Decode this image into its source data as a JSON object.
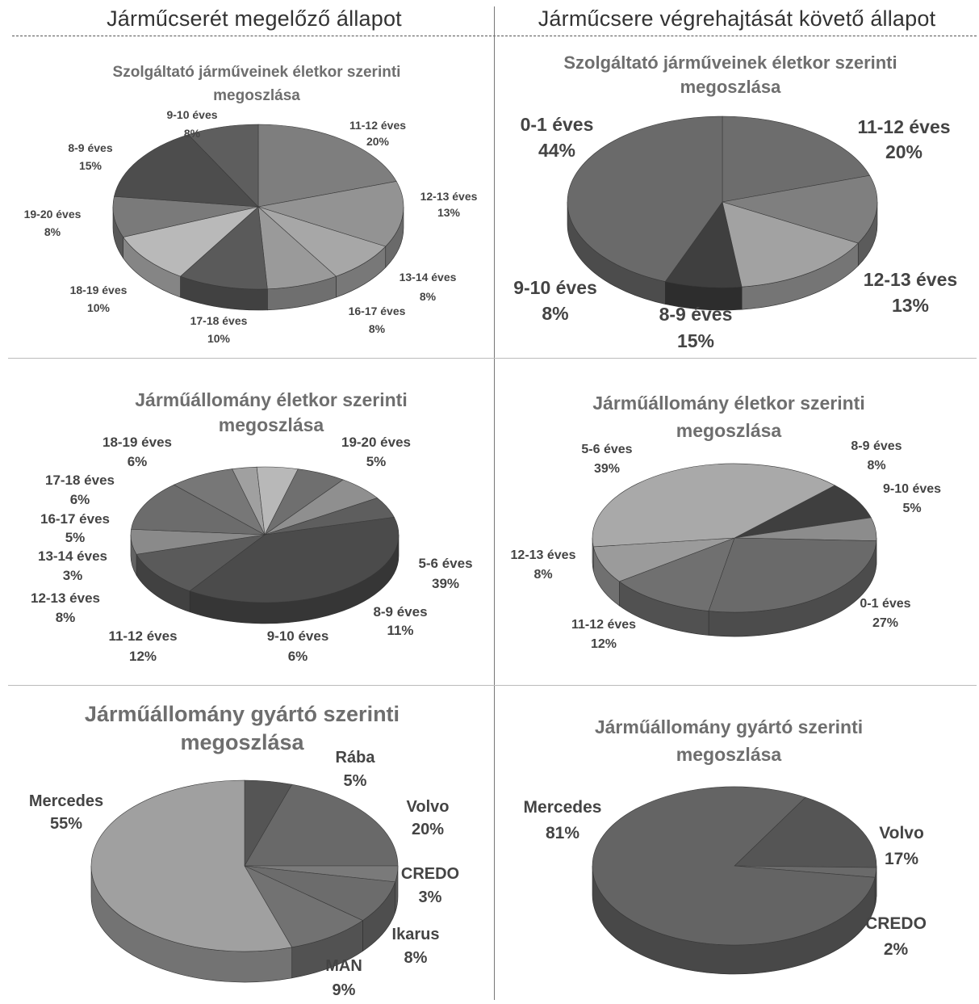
{
  "headers": {
    "left": "Járműcserét megelőző állapot",
    "right": "Járműcsere végrehajtását követő állapot"
  },
  "chart_data": [
    {
      "type": "pie",
      "title": "Szolgáltató járműveinek életkor szerinti megoszlása",
      "categories": [
        "11-12 éves",
        "12-13 éves",
        "13-14 éves",
        "16-17 éves",
        "17-18 éves",
        "18-19 éves",
        "19-20 éves",
        "8-9 éves",
        "9-10 éves"
      ],
      "values": [
        20,
        13,
        8,
        8,
        10,
        10,
        8,
        15,
        8
      ],
      "labels": [
        "20%",
        "13%",
        "8%",
        "8%",
        "10%",
        "10%",
        "8%",
        "15%",
        "8%"
      ]
    },
    {
      "type": "pie",
      "title": "Szolgáltató járműveinek életkor szerinti megoszlása",
      "categories": [
        "11-12 éves",
        "12-13 éves",
        "8-9 éves",
        "9-10 éves",
        "0-1 éves"
      ],
      "values": [
        20,
        13,
        15,
        8,
        44
      ],
      "labels": [
        "20%",
        "13%",
        "15%",
        "8%",
        "44%"
      ]
    },
    {
      "type": "pie",
      "title": "Járműállomány életkor szerinti megoszlása",
      "categories": [
        "5-6 éves",
        "8-9 éves",
        "9-10 éves",
        "11-12 éves",
        "12-13 éves",
        "13-14 éves",
        "16-17 éves",
        "17-18 éves",
        "18-19 éves",
        "19-20 éves"
      ],
      "values": [
        39,
        11,
        6,
        12,
        8,
        3,
        5,
        6,
        6,
        5
      ],
      "labels": [
        "39%",
        "11%",
        "6%",
        "12%",
        "8%",
        "3%",
        "5%",
        "6%",
        "6%",
        "5%"
      ]
    },
    {
      "type": "pie",
      "title": "Járműállomány életkor szerinti megoszlása",
      "categories": [
        "8-9 éves",
        "9-10 éves",
        "0-1 éves",
        "11-12 éves",
        "12-13 éves",
        "5-6 éves"
      ],
      "values": [
        8,
        5,
        27,
        12,
        8,
        39
      ],
      "labels": [
        "8%",
        "5%",
        "27%",
        "12%",
        "8%",
        "39%"
      ]
    },
    {
      "type": "pie",
      "title": "Járműállomány gyártó szerinti megoszlása",
      "categories": [
        "Rába",
        "Volvo",
        "CREDO",
        "Ikarus",
        "MAN",
        "Mercedes"
      ],
      "values": [
        5,
        20,
        3,
        8,
        9,
        55
      ],
      "labels": [
        "5%",
        "20%",
        "3%",
        "8%",
        "9%",
        "55%"
      ]
    },
    {
      "type": "pie",
      "title": "Járműállomány gyártó szerinti megoszlása",
      "categories": [
        "Volvo",
        "CREDO",
        "Mercedes"
      ],
      "values": [
        17,
        2,
        81
      ],
      "labels": [
        "17%",
        "2%",
        "81%"
      ]
    }
  ]
}
